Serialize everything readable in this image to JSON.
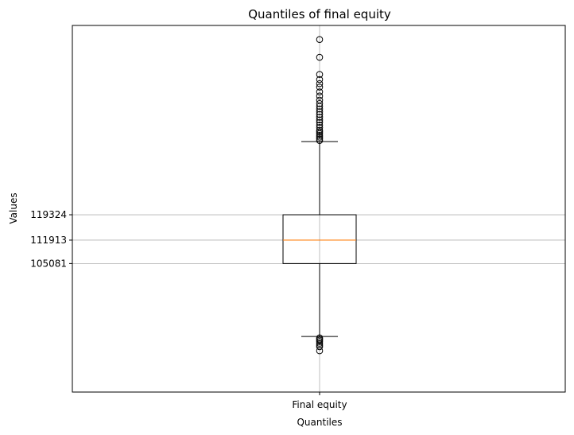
{
  "chart_data": {
    "type": "boxplot",
    "title": "Quantiles of final equity",
    "xlabel": "Quantiles",
    "ylabel": "Values",
    "categories": [
      "Final equity"
    ],
    "ylim": [
      67550,
      174600
    ],
    "yticks": [
      105081,
      111913,
      119324
    ],
    "ytick_labels": [
      "105081",
      "111913",
      "119324"
    ],
    "grid": true,
    "box": {
      "q1": 105081,
      "median": 111913,
      "q3": 119324,
      "whisker_low": 83786,
      "whisker_high": 140700
    },
    "outliers_high": [
      141000,
      141500,
      142000,
      142500,
      143000,
      143500,
      144000,
      144800,
      145500,
      146300,
      147000,
      147800,
      148600,
      149400,
      150200,
      151000,
      151800,
      152800,
      154000,
      155200,
      156600,
      157600,
      158800,
      160300,
      165300,
      170500
    ],
    "outliers_low": [
      83400,
      83000,
      82700,
      82300,
      81800,
      81300,
      80800,
      79600
    ],
    "colors": {
      "box": "#000000",
      "median": "#ff7f0e",
      "grid": "#b0b0b0"
    }
  }
}
